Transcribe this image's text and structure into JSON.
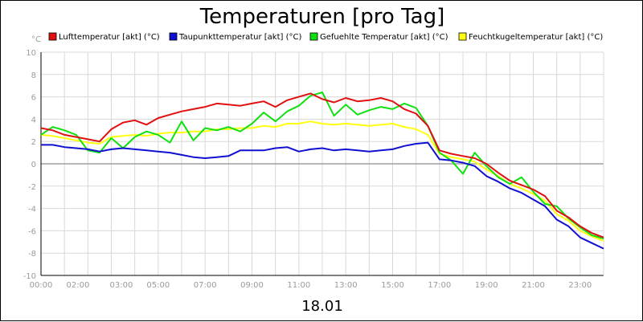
{
  "chart_data": {
    "type": "line",
    "title": "Temperaturen [pro Tag]",
    "ylabel": "°C",
    "xlabel": "18.01",
    "ylim": [
      -10,
      10
    ],
    "xlim": [
      0,
      24
    ],
    "yticks": [
      10,
      8,
      6,
      4,
      2,
      0,
      -2,
      -4,
      -6,
      -8,
      -10
    ],
    "yticks_labels": [
      "10",
      "8",
      "6",
      "4",
      "2",
      "0",
      "-2",
      "-4",
      "-6",
      "-8",
      "-10"
    ],
    "xticks": [
      {
        "label": "00:00",
        "h": 0
      },
      {
        "label": "02:00",
        "h": 2
      },
      {
        "label": "03:00",
        "h": 3
      },
      {
        "label": "05:00",
        "h": 5
      },
      {
        "label": "07:00",
        "h": 7
      },
      {
        "label": "09:00",
        "h": 9
      },
      {
        "label": "11:00",
        "h": 11
      },
      {
        "label": "13:00",
        "h": 13
      },
      {
        "label": "15:00",
        "h": 15
      },
      {
        "label": "17:00",
        "h": 17
      },
      {
        "label": "19:00",
        "h": 19
      },
      {
        "label": "21:00",
        "h": 21
      },
      {
        "label": "23:00",
        "h": 23
      }
    ],
    "grid": true,
    "legend_position": "top",
    "x": [
      0,
      0.5,
      1,
      1.5,
      2,
      2.5,
      3,
      3.5,
      4,
      4.5,
      5,
      5.5,
      6,
      6.5,
      7,
      7.5,
      8,
      8.5,
      9,
      9.5,
      10,
      10.5,
      11,
      11.5,
      12,
      12.5,
      13,
      13.5,
      14,
      14.5,
      15,
      15.5,
      16,
      16.5,
      17,
      17.5,
      18,
      18.5,
      19,
      19.5,
      20,
      20.5,
      21,
      21.5,
      22,
      22.5,
      23,
      23.5,
      24
    ],
    "series": [
      {
        "name": "Lufttemperatur [akt] (°C)",
        "color": "#e01010",
        "values": [
          3.2,
          3.0,
          2.6,
          2.4,
          2.2,
          2.0,
          3.1,
          3.7,
          3.9,
          3.5,
          4.1,
          4.4,
          4.7,
          4.9,
          5.1,
          5.4,
          5.3,
          5.2,
          5.4,
          5.6,
          5.1,
          5.7,
          6.0,
          6.3,
          5.8,
          5.5,
          5.9,
          5.6,
          5.7,
          5.9,
          5.6,
          4.9,
          4.5,
          3.4,
          1.2,
          0.9,
          0.7,
          0.5,
          0.0,
          -0.8,
          -1.5,
          -1.9,
          -2.3,
          -2.9,
          -4.2,
          -4.8,
          -5.6,
          -6.2,
          -6.6
        ]
      },
      {
        "name": "Taupunkttemperatur [akt] (°C)",
        "color": "#1010d0",
        "values": [
          1.7,
          1.7,
          1.5,
          1.4,
          1.3,
          1.1,
          1.3,
          1.4,
          1.3,
          1.2,
          1.1,
          1.0,
          0.8,
          0.6,
          0.5,
          0.6,
          0.7,
          1.2,
          1.2,
          1.2,
          1.4,
          1.5,
          1.1,
          1.3,
          1.4,
          1.2,
          1.3,
          1.2,
          1.1,
          1.2,
          1.3,
          1.6,
          1.8,
          1.9,
          0.4,
          0.3,
          0.1,
          -0.2,
          -1.1,
          -1.6,
          -2.2,
          -2.6,
          -3.2,
          -3.8,
          -5.0,
          -5.6,
          -6.6,
          -7.1,
          -7.6
        ]
      },
      {
        "name": "Gefuehlte Temperatur [akt] (°C)",
        "color": "#10e010",
        "values": [
          2.6,
          3.3,
          3.0,
          2.6,
          1.2,
          1.0,
          2.3,
          1.4,
          2.4,
          2.9,
          2.6,
          1.9,
          3.8,
          2.1,
          3.2,
          3.0,
          3.3,
          2.9,
          3.6,
          4.6,
          3.8,
          4.7,
          5.2,
          6.1,
          6.4,
          4.3,
          5.3,
          4.4,
          4.8,
          5.1,
          4.9,
          5.4,
          5.0,
          3.4,
          1.0,
          0.3,
          -0.9,
          1.0,
          -0.2,
          -1.2,
          -1.8,
          -1.2,
          -2.5,
          -3.6,
          -3.8,
          -4.9,
          -5.7,
          -6.4,
          -6.7
        ]
      },
      {
        "name": "Feuchtkugeltemperatur [akt] (°C)",
        "color": "#ffff10",
        "values": [
          2.6,
          2.5,
          2.3,
          2.1,
          1.9,
          1.8,
          2.4,
          2.5,
          2.6,
          2.5,
          2.7,
          2.8,
          2.8,
          2.9,
          2.9,
          3.1,
          3.1,
          3.2,
          3.2,
          3.4,
          3.3,
          3.6,
          3.6,
          3.8,
          3.6,
          3.5,
          3.6,
          3.5,
          3.4,
          3.5,
          3.6,
          3.3,
          3.1,
          2.6,
          0.9,
          0.6,
          0.4,
          0.2,
          -0.5,
          -1.1,
          -1.8,
          -2.2,
          -2.7,
          -3.3,
          -4.5,
          -5.1,
          -6.0,
          -6.5,
          -6.9
        ]
      }
    ]
  }
}
